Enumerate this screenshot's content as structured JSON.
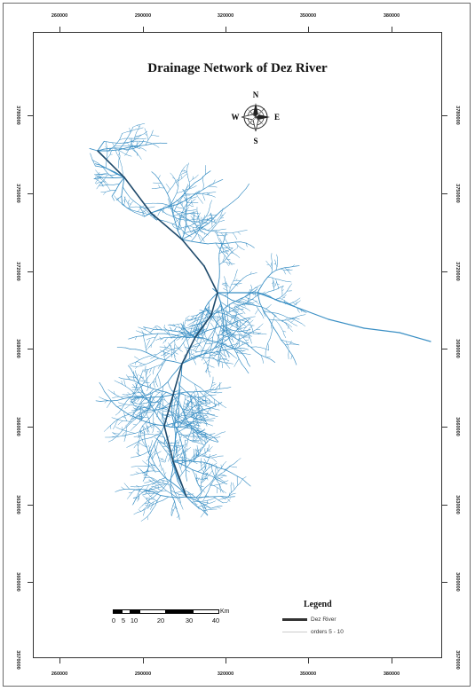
{
  "map": {
    "title": "Drainage Network of Dez River",
    "compass": {
      "n": "N",
      "s": "S",
      "e": "E",
      "w": "W"
    },
    "x_ticks": [
      "260000",
      "290000",
      "320000",
      "350000",
      "380000"
    ],
    "y_ticks": [
      "3780000",
      "3750000",
      "3720000",
      "3690000",
      "3660000",
      "3630000",
      "3600000",
      "3570000"
    ],
    "scale_bar": {
      "labels": [
        "0",
        "5",
        "10",
        "20",
        "30",
        "40"
      ],
      "unit": "Km"
    },
    "legend": {
      "title": "Legend",
      "items": [
        {
          "label": "Dez River",
          "color": "#333333"
        },
        {
          "label": "orders 5 - 10",
          "color": "#cccccc"
        }
      ]
    },
    "colors": {
      "stream": "#3a8fc4",
      "main_river": "#1f4a6b"
    }
  }
}
